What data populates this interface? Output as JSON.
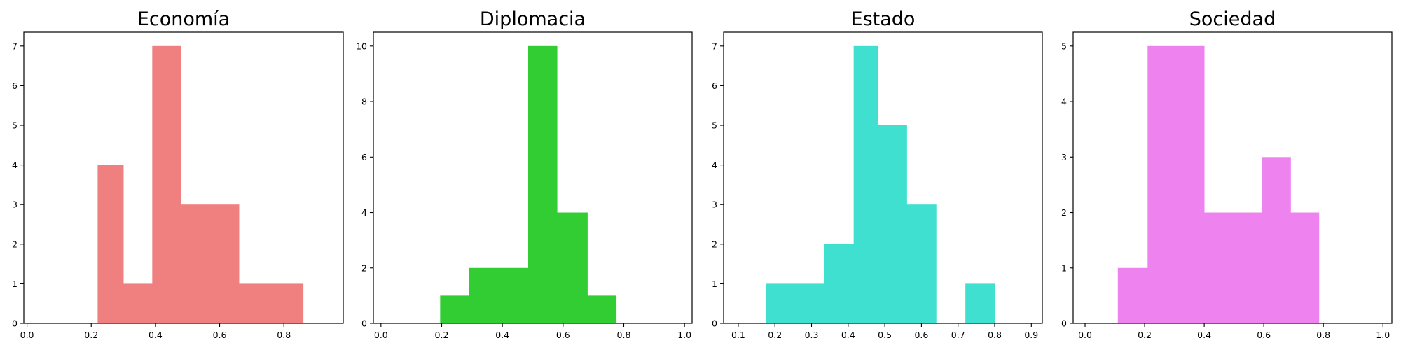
{
  "chart_data": [
    {
      "type": "bar",
      "subtype": "histogram",
      "title": "Economía",
      "color": "#f08080",
      "bins": [
        {
          "x0": 0.22,
          "x1": 0.3,
          "value": 4
        },
        {
          "x0": 0.3,
          "x1": 0.39,
          "value": 1
        },
        {
          "x0": 0.39,
          "x1": 0.48,
          "value": 7
        },
        {
          "x0": 0.48,
          "x1": 0.57,
          "value": 3
        },
        {
          "x0": 0.57,
          "x1": 0.66,
          "value": 3
        },
        {
          "x0": 0.66,
          "x1": 0.76,
          "value": 1
        },
        {
          "x0": 0.76,
          "x1": 0.86,
          "value": 1
        }
      ],
      "xlim": [
        -0.01,
        0.985
      ],
      "ylim": [
        0,
        7.35
      ],
      "xticks": [
        "0.0",
        "0.2",
        "0.4",
        "0.6",
        "0.8"
      ],
      "xtick_values": [
        0.0,
        0.2,
        0.4,
        0.6,
        0.8
      ],
      "yticks": [
        "0",
        "1",
        "2",
        "3",
        "4",
        "5",
        "6",
        "7"
      ],
      "ytick_values": [
        0,
        1,
        2,
        3,
        4,
        5,
        6,
        7
      ],
      "grid": false
    },
    {
      "type": "bar",
      "subtype": "histogram",
      "title": "Diplomacia",
      "color": "#32cd32",
      "bins": [
        {
          "x0": 0.195,
          "x1": 0.29,
          "value": 1
        },
        {
          "x0": 0.29,
          "x1": 0.39,
          "value": 2
        },
        {
          "x0": 0.39,
          "x1": 0.485,
          "value": 2
        },
        {
          "x0": 0.485,
          "x1": 0.58,
          "value": 10
        },
        {
          "x0": 0.58,
          "x1": 0.68,
          "value": 4
        },
        {
          "x0": 0.68,
          "x1": 0.775,
          "value": 1
        }
      ],
      "xlim": [
        -0.025,
        1.025
      ],
      "ylim": [
        0,
        10.5
      ],
      "xticks": [
        "0.0",
        "0.2",
        "0.4",
        "0.6",
        "0.8",
        "1.0"
      ],
      "xtick_values": [
        0.0,
        0.2,
        0.4,
        0.6,
        0.8,
        1.0
      ],
      "yticks": [
        "0",
        "2",
        "4",
        "6",
        "8",
        "10"
      ],
      "ytick_values": [
        0,
        2,
        4,
        6,
        8,
        10
      ],
      "grid": false
    },
    {
      "type": "bar",
      "subtype": "histogram",
      "title": "Estado",
      "color": "#40e0d0",
      "bins": [
        {
          "x0": 0.175,
          "x1": 0.255,
          "value": 1
        },
        {
          "x0": 0.255,
          "x1": 0.335,
          "value": 1
        },
        {
          "x0": 0.335,
          "x1": 0.415,
          "value": 2
        },
        {
          "x0": 0.415,
          "x1": 0.48,
          "value": 7
        },
        {
          "x0": 0.48,
          "x1": 0.56,
          "value": 5
        },
        {
          "x0": 0.56,
          "x1": 0.64,
          "value": 3
        },
        {
          "x0": 0.64,
          "x1": 0.72,
          "value": 0
        },
        {
          "x0": 0.72,
          "x1": 0.8,
          "value": 1
        }
      ],
      "xlim": [
        0.06,
        0.93
      ],
      "ylim": [
        0,
        7.35
      ],
      "xticks": [
        "0.1",
        "0.2",
        "0.3",
        "0.4",
        "0.5",
        "0.6",
        "0.7",
        "0.8",
        "0.9"
      ],
      "xtick_values": [
        0.1,
        0.2,
        0.3,
        0.4,
        0.5,
        0.6,
        0.7,
        0.8,
        0.9
      ],
      "yticks": [
        "0",
        "1",
        "2",
        "3",
        "4",
        "5",
        "6",
        "7"
      ],
      "ytick_values": [
        0,
        1,
        2,
        3,
        4,
        5,
        6,
        7
      ],
      "grid": false
    },
    {
      "type": "bar",
      "subtype": "histogram",
      "title": "Sociedad",
      "color": "#ee82ee",
      "bins": [
        {
          "x0": 0.11,
          "x1": 0.21,
          "value": 1
        },
        {
          "x0": 0.21,
          "x1": 0.305,
          "value": 5
        },
        {
          "x0": 0.305,
          "x1": 0.4,
          "value": 5
        },
        {
          "x0": 0.4,
          "x1": 0.5,
          "value": 2
        },
        {
          "x0": 0.5,
          "x1": 0.595,
          "value": 2
        },
        {
          "x0": 0.595,
          "x1": 0.69,
          "value": 3
        },
        {
          "x0": 0.69,
          "x1": 0.785,
          "value": 2
        }
      ],
      "xlim": [
        -0.04,
        1.03
      ],
      "ylim": [
        0,
        5.25
      ],
      "xticks": [
        "0.0",
        "0.2",
        "0.4",
        "0.6",
        "0.8",
        "1.0"
      ],
      "xtick_values": [
        0.0,
        0.2,
        0.4,
        0.6,
        0.8,
        1.0
      ],
      "yticks": [
        "0",
        "1",
        "2",
        "3",
        "4",
        "5"
      ],
      "ytick_values": [
        0,
        1,
        2,
        3,
        4,
        5
      ],
      "grid": false
    }
  ]
}
